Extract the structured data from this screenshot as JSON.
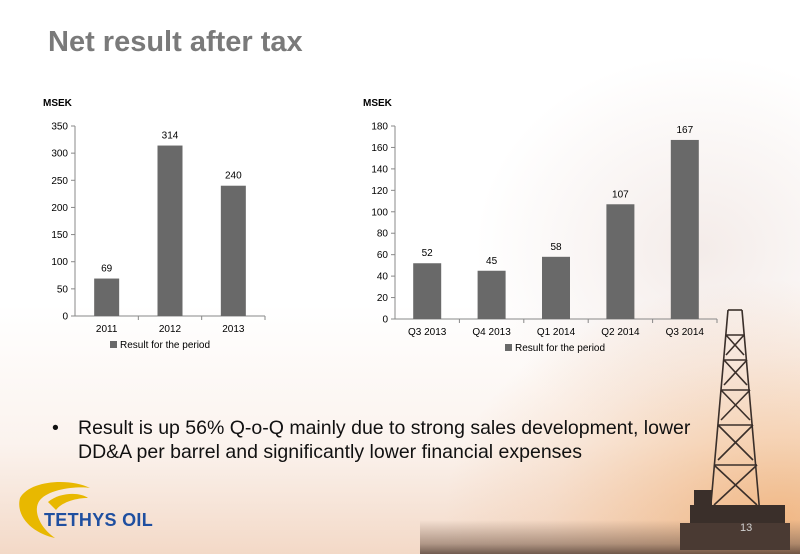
{
  "title": "Net result after tax",
  "bullet_text": "Result is up 56% Q-o-Q mainly due to strong sales development, lower DD&A per barrel and significantly lower financial expenses",
  "logo_text": "TETHYS OIL",
  "page_number": "13",
  "colors": {
    "bar": "#696969",
    "title": "#7a7a7a",
    "logo": "#1f4fa0",
    "logo_mark": "#e8b800"
  },
  "chart_data": [
    {
      "type": "bar",
      "unit_label": "MSEK",
      "categories": [
        "2011",
        "2012",
        "2013"
      ],
      "series": [
        {
          "name": "Result for the period",
          "values": [
            69,
            314,
            240
          ]
        }
      ],
      "ylim": [
        0,
        350
      ],
      "yticks": [
        0,
        50,
        100,
        150,
        200,
        250,
        300,
        350
      ],
      "grid": false,
      "legend": "bottom"
    },
    {
      "type": "bar",
      "unit_label": "MSEK",
      "categories": [
        "Q3 2013",
        "Q4 2013",
        "Q1 2014",
        "Q2 2014",
        "Q3 2014"
      ],
      "series": [
        {
          "name": "Result for the period",
          "values": [
            52,
            45,
            58,
            107,
            167
          ]
        }
      ],
      "ylim": [
        0,
        180
      ],
      "yticks": [
        0,
        20,
        40,
        60,
        80,
        100,
        120,
        140,
        160,
        180
      ],
      "grid": false,
      "legend": "bottom"
    }
  ]
}
